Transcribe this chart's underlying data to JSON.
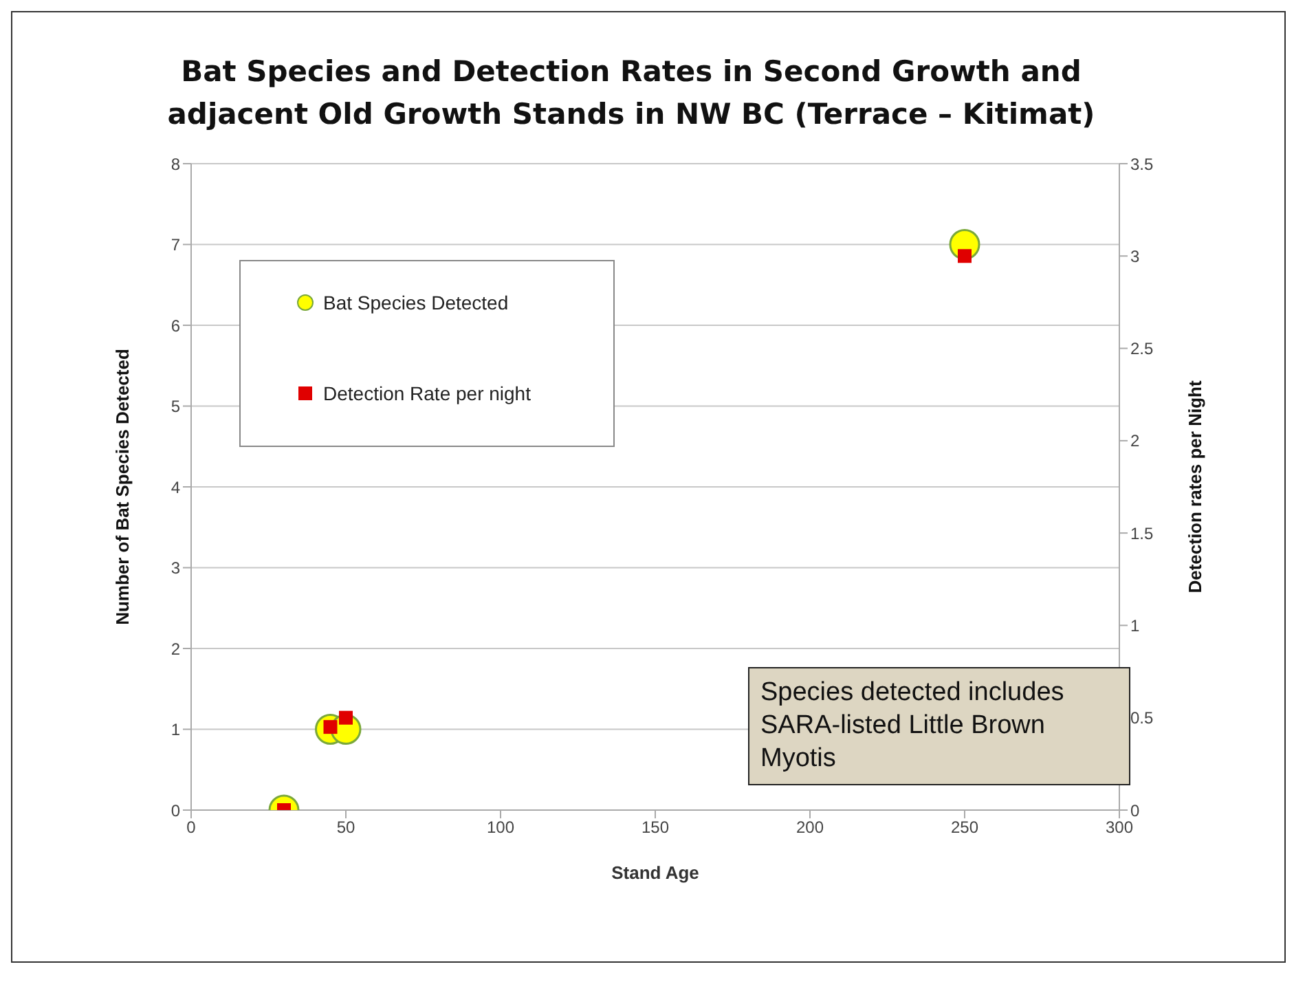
{
  "chart_data": {
    "type": "scatter",
    "title": "Bat Species and Detection Rates in Second Growth and adjacent Old Growth Stands in NW BC (Terrace – Kitimat)",
    "xlabel": "Stand Age",
    "ylabel": "Number of Bat Species Detected",
    "y2label": "Detection rates per Night",
    "series": [
      {
        "name": "Bat Species Detected",
        "color": "#ffff00",
        "marker": "circle",
        "x": [
          30,
          45,
          50,
          250
        ],
        "values": [
          0,
          1,
          1,
          7
        ]
      },
      {
        "name": "Detection Rate per night",
        "color": "#e00000",
        "marker": "square",
        "axis": "y2",
        "x": [
          30,
          45,
          50,
          250
        ],
        "values": [
          0,
          0.45,
          0.5,
          3
        ]
      }
    ],
    "xlim": [
      0,
      300
    ],
    "xticks": [
      0,
      50,
      100,
      150,
      200,
      250,
      300
    ],
    "ylim": [
      0,
      8
    ],
    "yticks": [
      0,
      1,
      2,
      3,
      4,
      5,
      6,
      7,
      8
    ],
    "y2lim": [
      0,
      3.5
    ],
    "y2ticks": [
      0,
      0.5,
      1,
      1.5,
      2,
      2.5,
      3,
      3.5
    ],
    "grid": "y",
    "legend": "top left",
    "annotations": [
      "Species detected includes SARA-listed Little Brown Myotis"
    ]
  }
}
